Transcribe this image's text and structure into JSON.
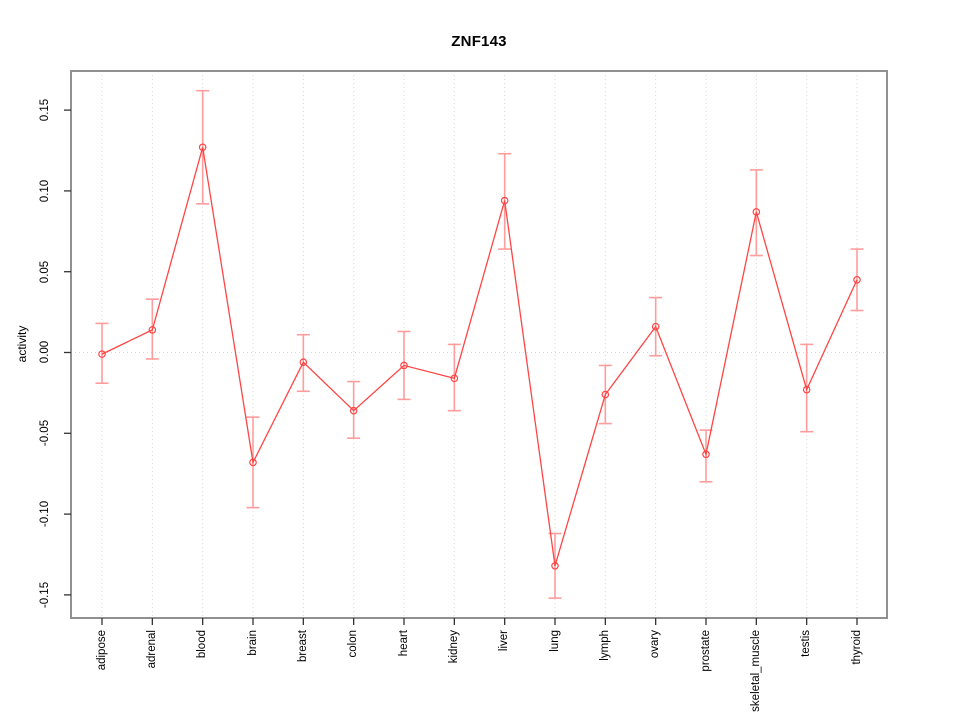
{
  "chart_data": {
    "type": "line",
    "title": "ZNF143",
    "ylabel": "activity",
    "xlabel": "",
    "legend": "none",
    "grid": "vertical dotted gridline at each category, dotted horizontal line at zero",
    "categories": [
      "adipose",
      "adrenal",
      "blood",
      "brain",
      "breast",
      "colon",
      "heart",
      "kidney",
      "liver",
      "lung",
      "lymph",
      "ovary",
      "prostate",
      "skeletal_muscle",
      "testis",
      "thyroid"
    ],
    "series": [
      {
        "name": "activity",
        "values": [
          -0.001,
          0.014,
          0.127,
          -0.068,
          -0.006,
          -0.036,
          -0.008,
          -0.016,
          0.094,
          -0.132,
          -0.026,
          0.016,
          -0.063,
          0.087,
          -0.023,
          0.045
        ],
        "ci_upper": [
          0.018,
          0.033,
          0.162,
          -0.04,
          0.011,
          -0.018,
          0.013,
          0.005,
          0.123,
          -0.112,
          -0.008,
          0.034,
          -0.048,
          0.113,
          0.005,
          0.064
        ],
        "ci_lower": [
          -0.019,
          -0.004,
          0.092,
          -0.096,
          -0.024,
          -0.053,
          -0.029,
          -0.036,
          0.064,
          -0.152,
          -0.044,
          -0.002,
          -0.08,
          0.06,
          -0.049,
          0.026
        ]
      }
    ],
    "ytick_labels": [
      "0.15",
      "0.10",
      "0.05",
      "0.00",
      "-0.05",
      "-0.10",
      "-0.15"
    ],
    "ytick_values": [
      0.15,
      0.1,
      0.05,
      0.0,
      -0.05,
      -0.1,
      -0.15
    ],
    "ylim": [
      -0.1643,
      0.1742
    ],
    "marker": "open-circle",
    "colors": {
      "line": "#fd4545",
      "marker": "#fd4545",
      "error_bar": "#ff9c9c",
      "grid": "#d7d7d7",
      "box_border": "#909090",
      "tick": "#333333",
      "text": "#000000",
      "background": "#ffffff"
    }
  }
}
